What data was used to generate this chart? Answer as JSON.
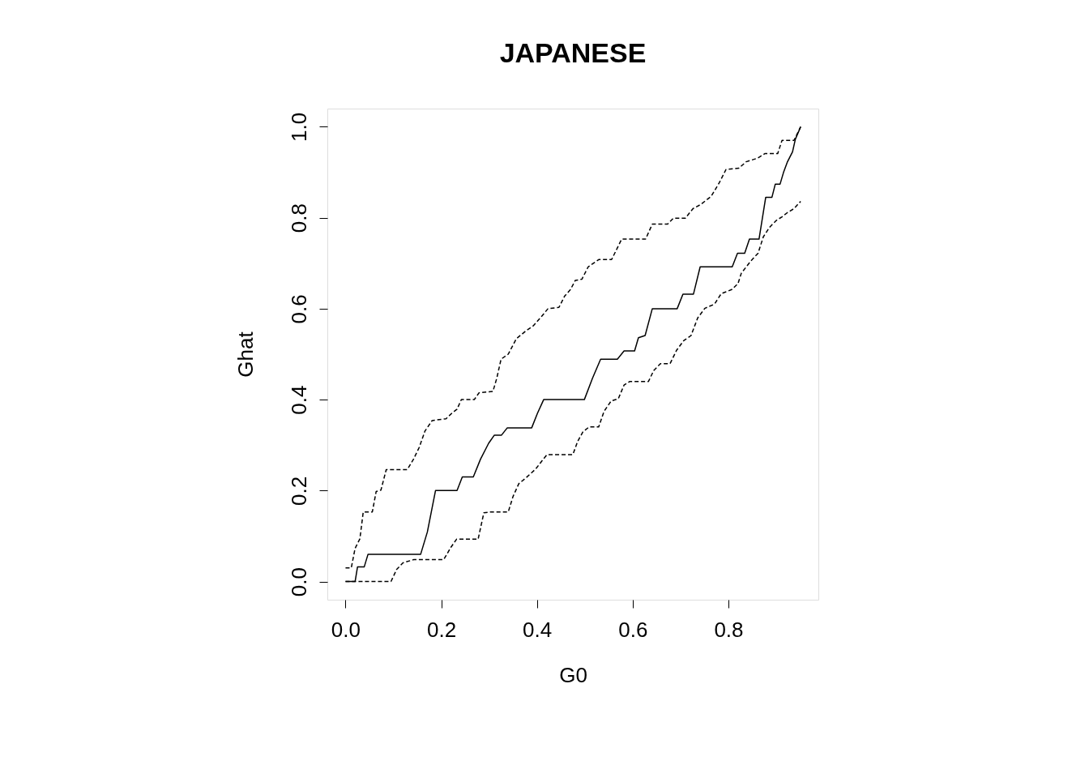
{
  "chart_data": {
    "type": "line",
    "title": "JAPANESE",
    "xlabel": "G0",
    "ylabel": "Ghat",
    "xlim": [
      -0.038,
      0.988
    ],
    "ylim": [
      -0.04,
      1.04
    ],
    "xticks": [
      {
        "value": 0,
        "label": "0.0"
      },
      {
        "value": 0.2,
        "label": "0.2"
      },
      {
        "value": 0.4,
        "label": "0.4"
      },
      {
        "value": 0.6,
        "label": "0.6"
      },
      {
        "value": 0.8,
        "label": "0.8"
      }
    ],
    "yticks": [
      {
        "value": 0,
        "label": "0.0"
      },
      {
        "value": 0.2,
        "label": "0.2"
      },
      {
        "value": 0.4,
        "label": "0.4"
      },
      {
        "value": 0.6,
        "label": "0.6"
      },
      {
        "value": 0.8,
        "label": "0.8"
      },
      {
        "value": 1,
        "label": "1.0"
      }
    ],
    "grid": false,
    "series": [
      {
        "color": "#000000",
        "line_style": "solid",
        "x": [
          0,
          0.02,
          0.025,
          0.039,
          0.047,
          0.157,
          0.171,
          0.188,
          0.233,
          0.244,
          0.267,
          0.282,
          0.299,
          0.311,
          0.326,
          0.338,
          0.389,
          0.401,
          0.414,
          0.499,
          0.516,
          0.533,
          0.568,
          0.582,
          0.604,
          0.612,
          0.626,
          0.641,
          0.693,
          0.705,
          0.727,
          0.741,
          0.808,
          0.819,
          0.834,
          0.844,
          0.864,
          0.878,
          0.891,
          0.898,
          0.908,
          0.915,
          0.923,
          0.934,
          0.94,
          0.951
        ],
        "values": [
          0,
          0,
          0.032,
          0.032,
          0.06,
          0.06,
          0.109,
          0.2,
          0.2,
          0.23,
          0.23,
          0.269,
          0.304,
          0.322,
          0.322,
          0.338,
          0.338,
          0.37,
          0.4,
          0.4,
          0.447,
          0.489,
          0.489,
          0.507,
          0.507,
          0.536,
          0.541,
          0.6,
          0.6,
          0.632,
          0.632,
          0.692,
          0.692,
          0.722,
          0.722,
          0.753,
          0.753,
          0.845,
          0.845,
          0.874,
          0.874,
          0.899,
          0.922,
          0.945,
          0.973,
          1.0
        ]
      },
      {
        "color": "#000000",
        "line_style": "dashed",
        "x": [
          0,
          0.012,
          0.02,
          0.03,
          0.037,
          0.056,
          0.064,
          0.074,
          0.085,
          0.129,
          0.142,
          0.154,
          0.166,
          0.181,
          0.21,
          0.222,
          0.233,
          0.242,
          0.269,
          0.279,
          0.308,
          0.316,
          0.325,
          0.34,
          0.357,
          0.379,
          0.392,
          0.409,
          0.423,
          0.446,
          0.458,
          0.47,
          0.48,
          0.494,
          0.507,
          0.529,
          0.556,
          0.577,
          0.627,
          0.641,
          0.673,
          0.685,
          0.71,
          0.726,
          0.742,
          0.764,
          0.781,
          0.795,
          0.822,
          0.837,
          0.861,
          0.876,
          0.903,
          0.912,
          0.937,
          0.951
        ],
        "values": [
          0.03,
          0.03,
          0.073,
          0.094,
          0.153,
          0.153,
          0.198,
          0.201,
          0.246,
          0.246,
          0.269,
          0.295,
          0.331,
          0.354,
          0.358,
          0.37,
          0.379,
          0.4,
          0.4,
          0.415,
          0.418,
          0.447,
          0.489,
          0.5,
          0.534,
          0.553,
          0.562,
          0.582,
          0.6,
          0.603,
          0.628,
          0.642,
          0.662,
          0.665,
          0.692,
          0.708,
          0.708,
          0.753,
          0.753,
          0.786,
          0.786,
          0.799,
          0.799,
          0.82,
          0.829,
          0.847,
          0.877,
          0.906,
          0.909,
          0.923,
          0.931,
          0.941,
          0.941,
          0.97,
          0.97,
          1.0
        ]
      },
      {
        "color": "#000000",
        "line_style": "dashed",
        "x": [
          0,
          0.095,
          0.107,
          0.12,
          0.142,
          0.205,
          0.22,
          0.232,
          0.277,
          0.289,
          0.303,
          0.34,
          0.35,
          0.362,
          0.377,
          0.397,
          0.414,
          0.421,
          0.475,
          0.485,
          0.496,
          0.509,
          0.529,
          0.54,
          0.555,
          0.57,
          0.582,
          0.594,
          0.633,
          0.644,
          0.658,
          0.678,
          0.692,
          0.707,
          0.722,
          0.736,
          0.751,
          0.771,
          0.785,
          0.807,
          0.82,
          0.827,
          0.847,
          0.862,
          0.873,
          0.886,
          0.9,
          0.912,
          0.923,
          0.937,
          0.951
        ],
        "values": [
          0,
          0,
          0.027,
          0.041,
          0.048,
          0.048,
          0.075,
          0.093,
          0.093,
          0.151,
          0.153,
          0.153,
          0.187,
          0.215,
          0.228,
          0.247,
          0.27,
          0.279,
          0.279,
          0.308,
          0.329,
          0.34,
          0.34,
          0.374,
          0.397,
          0.402,
          0.432,
          0.44,
          0.44,
          0.464,
          0.479,
          0.479,
          0.509,
          0.53,
          0.541,
          0.58,
          0.601,
          0.61,
          0.633,
          0.642,
          0.655,
          0.678,
          0.705,
          0.722,
          0.758,
          0.779,
          0.794,
          0.802,
          0.811,
          0.82,
          0.836
        ]
      }
    ]
  }
}
